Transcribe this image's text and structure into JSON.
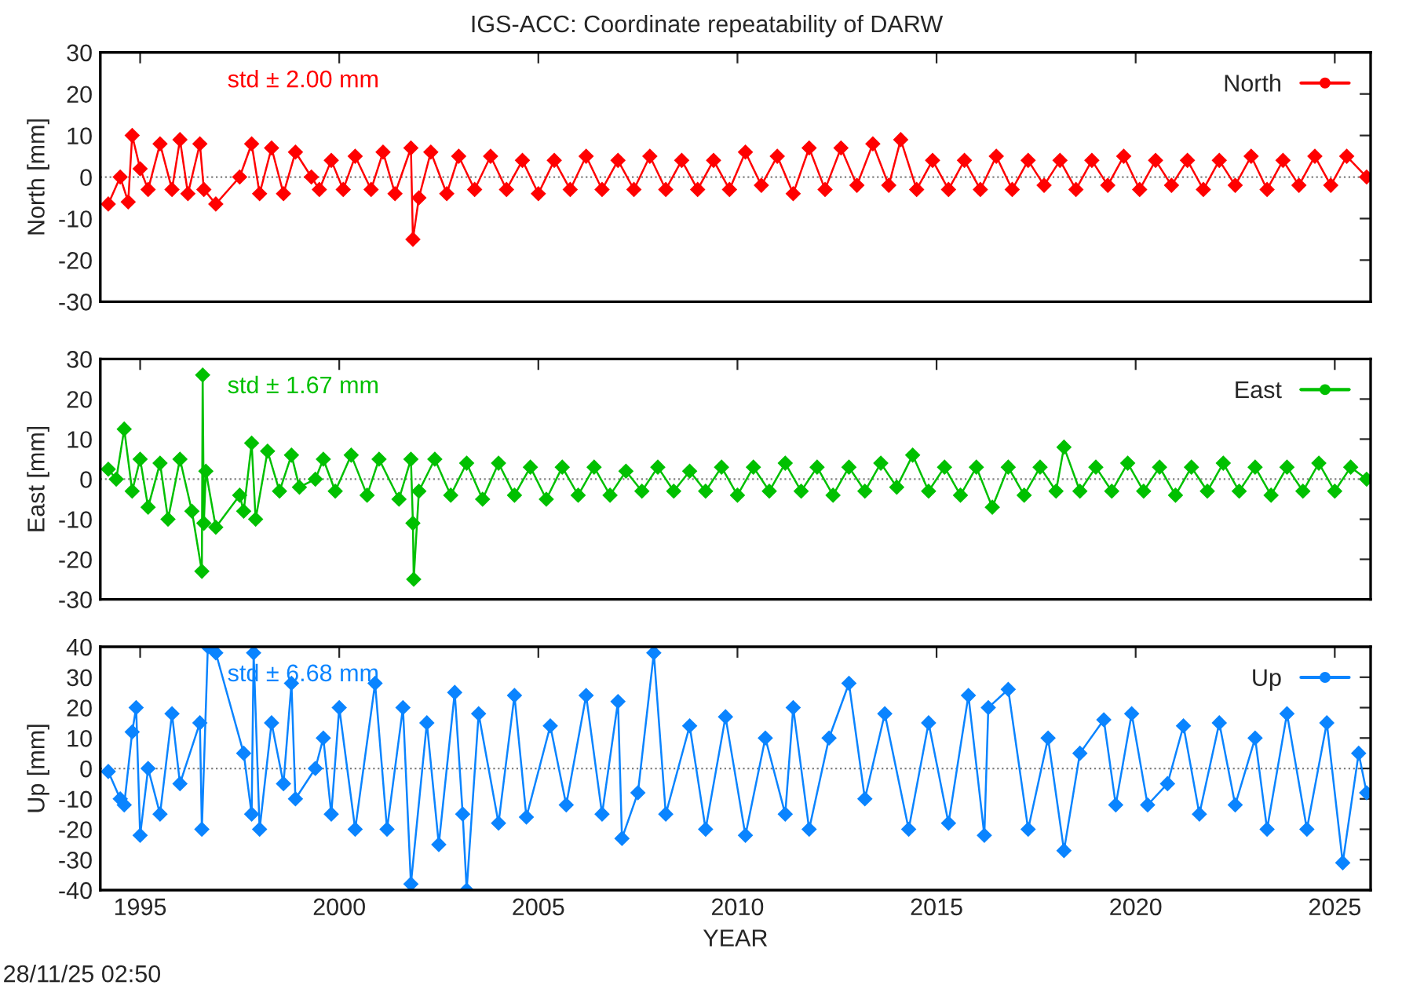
{
  "chart_data": [
    {
      "type": "line",
      "title": "IGS-ACC: Coordinate repeatability of DARW",
      "ylabel": "North [mm]",
      "annotations": [
        "std ± 2.00 mm"
      ],
      "xlim": [
        1994,
        2025.9
      ],
      "xticks": [
        1995,
        2000,
        2005,
        2010,
        2015,
        2020,
        2025
      ],
      "ylim": [
        -30,
        30
      ],
      "yticks": [
        -30,
        -20,
        -10,
        0,
        10,
        20,
        30
      ],
      "tick_labels": "y",
      "grid": false,
      "legend": "top right",
      "marker": "diamond",
      "line_style": "solid",
      "ref_lines": [
        {
          "axis": "y",
          "value": 0,
          "label": null,
          "color": "#808080",
          "line_style": "dotted"
        }
      ],
      "series": [
        {
          "name": "North",
          "color": "#ff0000",
          "x": [
            1994.2,
            1994.5,
            1994.7,
            1994.8,
            1995.0,
            1995.2,
            1995.5,
            1995.8,
            1996.0,
            1996.2,
            1996.5,
            1996.6,
            1996.9,
            1997.5,
            1997.8,
            1998.0,
            1998.3,
            1998.6,
            1998.9,
            1999.3,
            1999.5,
            1999.8,
            2000.1,
            2000.4,
            2000.8,
            2001.1,
            2001.4,
            2001.8,
            2001.85,
            2002.0,
            2002.3,
            2002.7,
            2003.0,
            2003.4,
            2003.8,
            2004.2,
            2004.6,
            2005.0,
            2005.4,
            2005.8,
            2006.2,
            2006.6,
            2007.0,
            2007.4,
            2007.8,
            2008.2,
            2008.6,
            2009.0,
            2009.4,
            2009.8,
            2010.2,
            2010.6,
            2011.0,
            2011.4,
            2011.8,
            2012.2,
            2012.6,
            2013.0,
            2013.4,
            2013.8,
            2014.1,
            2014.5,
            2014.9,
            2015.3,
            2015.7,
            2016.1,
            2016.5,
            2016.9,
            2017.3,
            2017.7,
            2018.1,
            2018.5,
            2018.9,
            2019.3,
            2019.7,
            2020.1,
            2020.5,
            2020.9,
            2021.3,
            2021.7,
            2022.1,
            2022.5,
            2022.9,
            2023.3,
            2023.7,
            2024.1,
            2024.5,
            2024.9,
            2025.3,
            2025.8
          ],
          "values": [
            -6.5,
            0,
            -6,
            10,
            2,
            -3,
            8,
            -3,
            9,
            -4,
            8,
            -3,
            -6.5,
            0,
            8,
            -4,
            7,
            -4,
            6,
            0,
            -3,
            4,
            -3,
            5,
            -3,
            6,
            -4,
            7,
            -15,
            -5,
            6,
            -4,
            5,
            -3,
            5,
            -3,
            4,
            -4,
            4,
            -3,
            5,
            -3,
            4,
            -3,
            5,
            -3,
            4,
            -3,
            4,
            -3,
            6,
            -2,
            5,
            -4,
            7,
            -3,
            7,
            -2,
            8,
            -2,
            9,
            -3,
            4,
            -3,
            4,
            -3,
            5,
            -3,
            4,
            -2,
            4,
            -3,
            4,
            -2,
            5,
            -3,
            4,
            -2,
            4,
            -3,
            4,
            -2,
            5,
            -3,
            4,
            -2,
            5,
            -2,
            5,
            0
          ]
        }
      ]
    },
    {
      "type": "line",
      "ylabel": "East [mm]",
      "annotations": [
        "std ± 1.67 mm"
      ],
      "xlim": [
        1994,
        2025.9
      ],
      "xticks": [
        1995,
        2000,
        2005,
        2010,
        2015,
        2020,
        2025
      ],
      "ylim": [
        -30,
        30
      ],
      "yticks": [
        -30,
        -20,
        -10,
        0,
        10,
        20,
        30
      ],
      "tick_labels": "y",
      "grid": false,
      "legend": "top right",
      "marker": "diamond",
      "line_style": "solid",
      "ref_lines": [
        {
          "axis": "y",
          "value": 0,
          "label": null,
          "color": "#808080",
          "line_style": "dotted"
        }
      ],
      "series": [
        {
          "name": "East",
          "color": "#00c000",
          "x": [
            1994.2,
            1994.4,
            1994.6,
            1994.8,
            1995.0,
            1995.2,
            1995.5,
            1995.7,
            1996.0,
            1996.3,
            1996.55,
            1996.57,
            1996.6,
            1996.65,
            1996.9,
            1997.5,
            1997.6,
            1997.8,
            1997.9,
            1998.2,
            1998.5,
            1998.8,
            1999.0,
            1999.4,
            1999.6,
            1999.9,
            2000.3,
            2000.7,
            2001.0,
            2001.5,
            2001.8,
            2001.85,
            2001.87,
            2002.0,
            2002.4,
            2002.8,
            2003.2,
            2003.6,
            2004.0,
            2004.4,
            2004.8,
            2005.2,
            2005.6,
            2006.0,
            2006.4,
            2006.8,
            2007.2,
            2007.6,
            2008.0,
            2008.4,
            2008.8,
            2009.2,
            2009.6,
            2010.0,
            2010.4,
            2010.8,
            2011.2,
            2011.6,
            2012.0,
            2012.4,
            2012.8,
            2013.2,
            2013.6,
            2014.0,
            2014.4,
            2014.8,
            2015.2,
            2015.6,
            2016.0,
            2016.4,
            2016.8,
            2017.2,
            2017.6,
            2018.0,
            2018.2,
            2018.6,
            2019.0,
            2019.4,
            2019.8,
            2020.2,
            2020.6,
            2021.0,
            2021.4,
            2021.8,
            2022.2,
            2022.6,
            2023.0,
            2023.4,
            2023.8,
            2024.2,
            2024.6,
            2025.0,
            2025.4,
            2025.8
          ],
          "values": [
            2.5,
            0,
            12.5,
            -3,
            5,
            -7,
            4,
            -10,
            5,
            -8,
            -23,
            26,
            -11,
            2,
            -12,
            -4,
            -8,
            9,
            -10,
            7,
            -3,
            6,
            -2,
            0,
            5,
            -3,
            6,
            -4,
            5,
            -5,
            5,
            -11,
            -25,
            -3,
            5,
            -4,
            4,
            -5,
            4,
            -4,
            3,
            -5,
            3,
            -4,
            3,
            -4,
            2,
            -3,
            3,
            -3,
            2,
            -3,
            3,
            -4,
            3,
            -3,
            4,
            -3,
            3,
            -4,
            3,
            -3,
            4,
            -2,
            6,
            -3,
            3,
            -4,
            3,
            -7,
            3,
            -4,
            3,
            -3,
            8,
            -3,
            3,
            -3,
            4,
            -3,
            3,
            -4,
            3,
            -3,
            4,
            -3,
            3,
            -4,
            3,
            -3,
            4,
            -3,
            3,
            0
          ]
        }
      ]
    },
    {
      "type": "line",
      "ylabel": "Up [mm]",
      "xlabel": "YEAR",
      "annotations": [
        "std ± 6.68 mm",
        "28/11/25 02:50"
      ],
      "xlim": [
        1994,
        2025.9
      ],
      "xticks": [
        1995,
        2000,
        2005,
        2010,
        2015,
        2020,
        2025
      ],
      "ylim": [
        -40,
        40
      ],
      "yticks": [
        -40,
        -30,
        -20,
        -10,
        0,
        10,
        20,
        30,
        40
      ],
      "grid": false,
      "legend": "top right",
      "marker": "diamond",
      "line_style": "solid",
      "ref_lines": [
        {
          "axis": "y",
          "value": 0,
          "label": null,
          "color": "#808080",
          "line_style": "dotted"
        }
      ],
      "series": [
        {
          "name": "Up",
          "color": "#0a84ff",
          "x": [
            1994.2,
            1994.5,
            1994.6,
            1994.8,
            1994.9,
            1995.0,
            1995.2,
            1995.5,
            1995.8,
            1996.0,
            1996.5,
            1996.55,
            1996.7,
            1996.9,
            1997.6,
            1997.8,
            1997.85,
            1998.0,
            1998.3,
            1998.6,
            1998.8,
            1998.9,
            1999.4,
            1999.6,
            1999.8,
            2000.0,
            2000.4,
            2000.9,
            2001.2,
            2001.6,
            2001.8,
            2002.2,
            2002.5,
            2002.9,
            2003.1,
            2003.2,
            2003.5,
            2004.0,
            2004.4,
            2004.7,
            2005.3,
            2005.7,
            2006.2,
            2006.6,
            2007.0,
            2007.1,
            2007.5,
            2007.9,
            2008.2,
            2008.8,
            2009.2,
            2009.7,
            2010.2,
            2010.7,
            2011.2,
            2011.4,
            2011.8,
            2012.3,
            2012.8,
            2013.2,
            2013.7,
            2014.3,
            2014.8,
            2015.3,
            2015.8,
            2016.2,
            2016.3,
            2016.8,
            2017.3,
            2017.8,
            2018.2,
            2018.6,
            2019.2,
            2019.5,
            2019.9,
            2020.3,
            2020.8,
            2021.2,
            2021.6,
            2022.1,
            2022.5,
            2023.0,
            2023.3,
            2023.8,
            2024.3,
            2024.8,
            2025.2,
            2025.6,
            2025.8
          ],
          "values": [
            -1,
            -10,
            -12,
            12,
            20,
            -22,
            0,
            -15,
            18,
            -5,
            15,
            -20,
            40,
            38,
            5,
            -15,
            38,
            -20,
            15,
            -5,
            28,
            -10,
            0,
            10,
            -15,
            20,
            -20,
            28,
            -20,
            20,
            -38,
            15,
            -25,
            25,
            -15,
            -40,
            18,
            -18,
            24,
            -16,
            14,
            -12,
            24,
            -15,
            22,
            -23,
            -8,
            38,
            -15,
            14,
            -20,
            17,
            -22,
            10,
            -15,
            20,
            -20,
            10,
            28,
            -10,
            18,
            -20,
            15,
            -18,
            24,
            -22,
            20,
            26,
            -20,
            10,
            -27,
            5,
            16,
            -12,
            18,
            -12,
            -5,
            14,
            -15,
            15,
            -12,
            10,
            -20,
            18,
            -20,
            15,
            -31,
            5,
            -8
          ]
        }
      ]
    }
  ]
}
